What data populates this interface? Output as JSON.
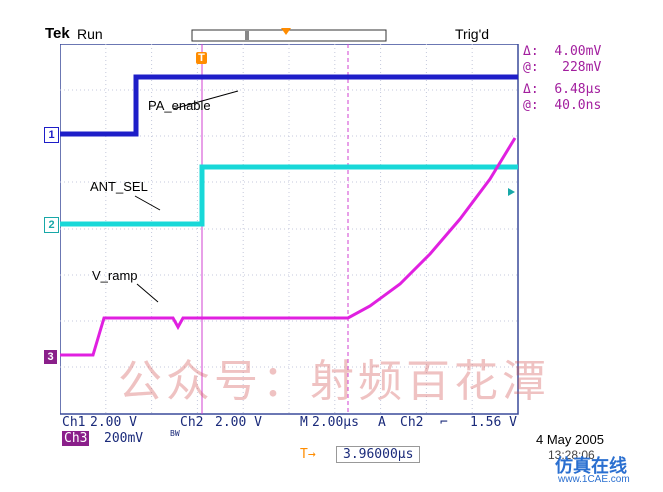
{
  "header": {
    "brand": "Tek",
    "state": "Run",
    "trigger_status": "Trig'd"
  },
  "cursors": {
    "ch1_delta_label": "Δ:",
    "ch1_delta_value": "4.00mV",
    "ch1_at_label": "@:",
    "ch1_at_value": "228mV",
    "time_delta_label": "Δ:",
    "time_delta_value": "6.48μs",
    "time_at_label": "@:",
    "time_at_value": "40.0ns"
  },
  "signal_labels": {
    "pa_enable": "PA_enable",
    "ant_sel": "ANT_SEL",
    "v_ramp": "V_ramp"
  },
  "channel_markers": {
    "ch1": "1",
    "ch2": "2",
    "ch3": "3"
  },
  "trigger_marker": "T",
  "watermark": "公众号：射频百花潭",
  "status": {
    "ch1_label": "Ch1",
    "ch1_scale": "2.00 V",
    "ch2_label": "Ch2",
    "ch2_scale": "2.00 V",
    "time_label": "M",
    "time_scale": "2.00μs",
    "trigger_mode": "A",
    "trigger_source": "Ch2",
    "trigger_slope": "⌐",
    "trigger_level": "1.56 V",
    "ch3_label": "Ch3",
    "ch3_scale": "200mV",
    "ch3_bw": "BW",
    "position_icon": "T→",
    "position_value": "3.96000μs"
  },
  "date": "4 May 2005",
  "time": "13:28:06",
  "site_logo": "仿真在线",
  "site_url": "www.1CAE.com",
  "colors": {
    "ch1": "#1e1ec8",
    "ch2": "#18d8d8",
    "ch3": "#e020e0",
    "grid": "#a9b0c8",
    "accent": "#ff8c00"
  }
}
